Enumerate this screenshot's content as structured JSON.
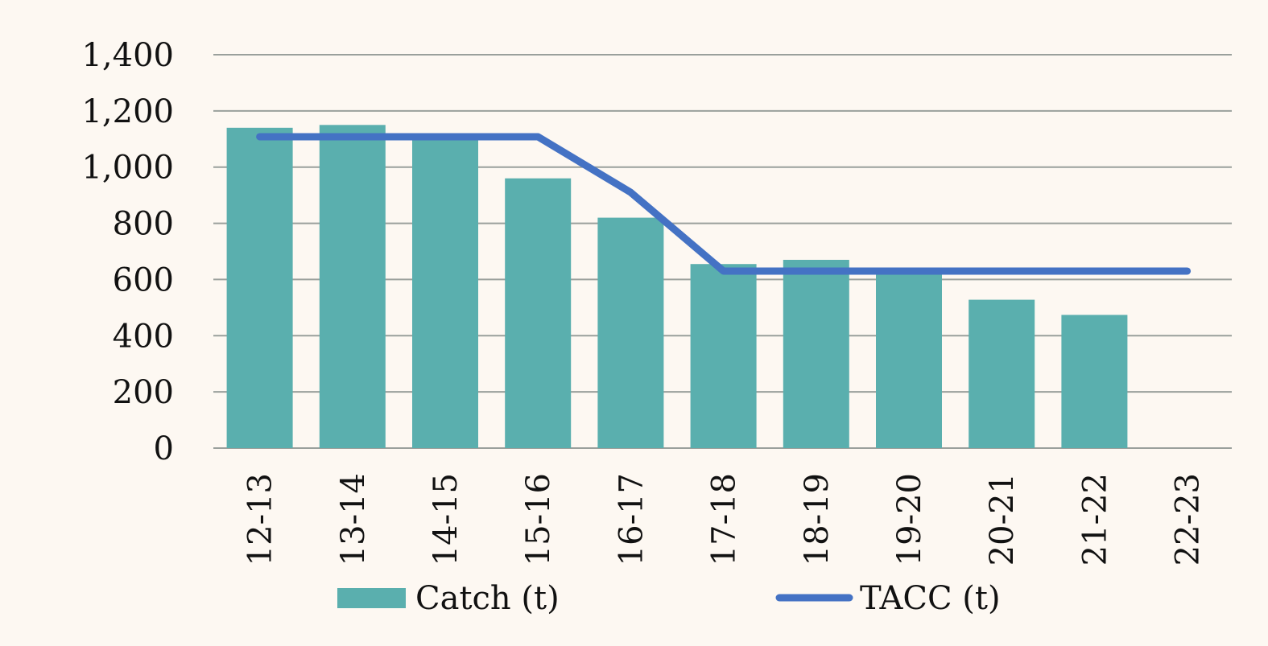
{
  "chart_data": {
    "type": "bar",
    "categories": [
      "12-13",
      "13-14",
      "14-15",
      "15-16",
      "16-17",
      "17-18",
      "18-19",
      "19-20",
      "20-21",
      "21-22",
      "22-23"
    ],
    "series": [
      {
        "name": "Catch (t)",
        "type": "bar",
        "color": "#5aafae",
        "values": [
          1140,
          1150,
          1110,
          960,
          820,
          655,
          670,
          630,
          528,
          474,
          null
        ]
      },
      {
        "name": "TACC (t)",
        "type": "line",
        "color": "#4472c4",
        "values": [
          1108,
          1108,
          1108,
          1108,
          910,
          630,
          630,
          630,
          630,
          630,
          630
        ]
      }
    ],
    "ylim": [
      0,
      1400
    ],
    "yticks": [
      0,
      200,
      400,
      600,
      800,
      1000,
      1200,
      1400
    ],
    "ytick_labels": [
      "0",
      "200",
      "400",
      "600",
      "800",
      "1,000",
      "1,200",
      "1,400"
    ],
    "grid": true,
    "legend": "bottom",
    "title": "",
    "xlabel": "",
    "ylabel": ""
  },
  "legend": {
    "catch_label": "Catch (t)",
    "tacc_label": "TACC (t)"
  },
  "colors": {
    "background": "#fdf8f2",
    "gridline": "#9aa09c",
    "bar": "#5aafae",
    "line": "#4472c4"
  }
}
